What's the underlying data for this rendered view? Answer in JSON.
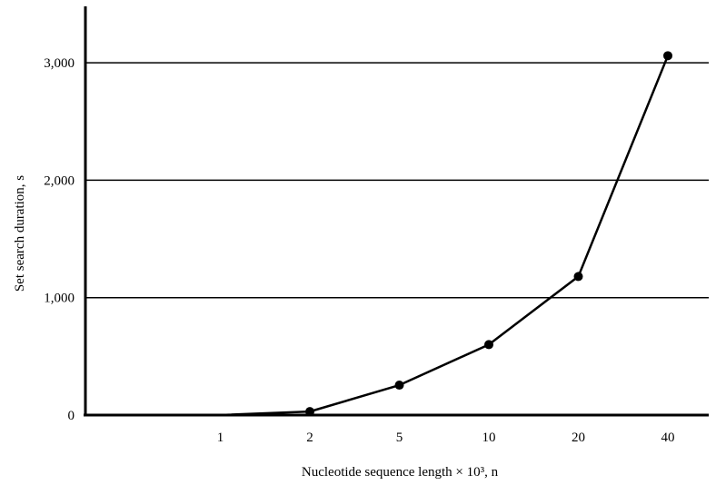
{
  "chart_data": {
    "type": "line",
    "title": "",
    "xlabel": "Nucleotide sequence length × 10³, n",
    "ylabel": "Set search duration, s",
    "categories": [
      "",
      "1",
      "2",
      "5",
      "10",
      "20",
      "40"
    ],
    "series": [
      {
        "values": [
          0,
          0,
          30,
          255,
          600,
          1180,
          3060
        ]
      }
    ],
    "y_ticks": [
      {
        "value": 0,
        "label": "0"
      },
      {
        "value": 1000,
        "label": "1,000"
      },
      {
        "value": 2000,
        "label": "2,000"
      },
      {
        "value": 3000,
        "label": "3,000"
      }
    ],
    "ylim": [
      0,
      3500
    ],
    "grid": true,
    "legend": "none",
    "colors": {
      "line": "#000000",
      "grid": "#000000",
      "axis": "#000000"
    }
  }
}
